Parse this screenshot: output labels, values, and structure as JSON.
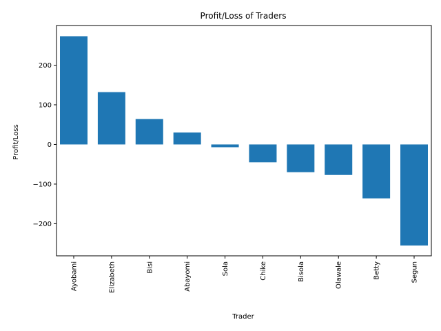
{
  "chart_data": {
    "type": "bar",
    "title": "Profit/Loss of Traders",
    "xlabel": "Trader",
    "ylabel": "Profit/Loss",
    "categories": [
      "Ayobami",
      "Elizabeth",
      "Bisi",
      "Abayomi",
      "Sola",
      "Chike",
      "Bisola",
      "Olawale",
      "Betty",
      "Segun"
    ],
    "values": [
      273,
      132,
      64,
      30,
      -7,
      -45,
      -70,
      -77,
      -136,
      -255
    ],
    "ylim": [
      -281,
      300
    ],
    "yticks": [
      -200,
      -100,
      0,
      100,
      200
    ],
    "ytick_labels": [
      "−200",
      "−100",
      "0",
      "100",
      "200"
    ],
    "grid": false,
    "bar_color": "#1f77b4"
  }
}
